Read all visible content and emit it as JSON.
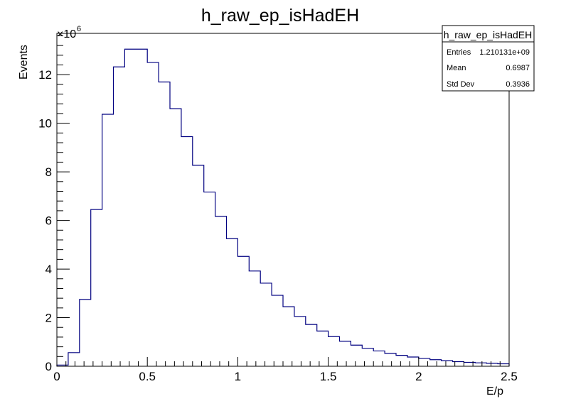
{
  "chart_data": {
    "type": "bar",
    "title": "h_raw_ep_isHadEH",
    "xlabel": "E/p",
    "ylabel": "Events",
    "y_multiplier": "×10",
    "y_multiplier_exp": "6",
    "xlim": [
      0,
      2.5
    ],
    "ylim": [
      0,
      13.7
    ],
    "x_ticks": [
      "0",
      "0.5",
      "1",
      "1.5",
      "2",
      "2.5"
    ],
    "y_ticks": [
      "0",
      "2",
      "4",
      "6",
      "8",
      "10",
      "12"
    ],
    "bin_edges": [
      0,
      0.0625,
      0.125,
      0.1875,
      0.25,
      0.3125,
      0.375,
      0.4375,
      0.5,
      0.5625,
      0.625,
      0.6875,
      0.75,
      0.8125,
      0.875,
      0.9375,
      1.0,
      1.0625,
      1.125,
      1.1875,
      1.25,
      1.3125,
      1.375,
      1.4375,
      1.5,
      1.5625,
      1.625,
      1.6875,
      1.75,
      1.8125,
      1.875,
      1.9375,
      2.0,
      2.0625,
      2.125,
      2.1875,
      2.25,
      2.3125,
      2.375,
      2.4375,
      2.5
    ],
    "values": [
      0.05,
      0.56,
      2.75,
      6.45,
      10.37,
      12.32,
      13.05,
      13.05,
      12.5,
      11.7,
      10.6,
      9.45,
      8.27,
      7.17,
      6.17,
      5.25,
      4.52,
      3.92,
      3.42,
      2.92,
      2.45,
      2.05,
      1.72,
      1.45,
      1.22,
      1.03,
      0.87,
      0.74,
      0.63,
      0.53,
      0.45,
      0.38,
      0.32,
      0.27,
      0.23,
      0.19,
      0.16,
      0.14,
      0.12,
      0.1
    ],
    "stats": {
      "name": "h_raw_ep_isHadEH",
      "rows": [
        {
          "label": "Entries",
          "value": "1.210131e+09"
        },
        {
          "label": "Mean",
          "value": "0.6987"
        },
        {
          "label": "Std Dev",
          "value": "0.3936"
        }
      ]
    },
    "line_color": "#000080",
    "grid": false
  }
}
